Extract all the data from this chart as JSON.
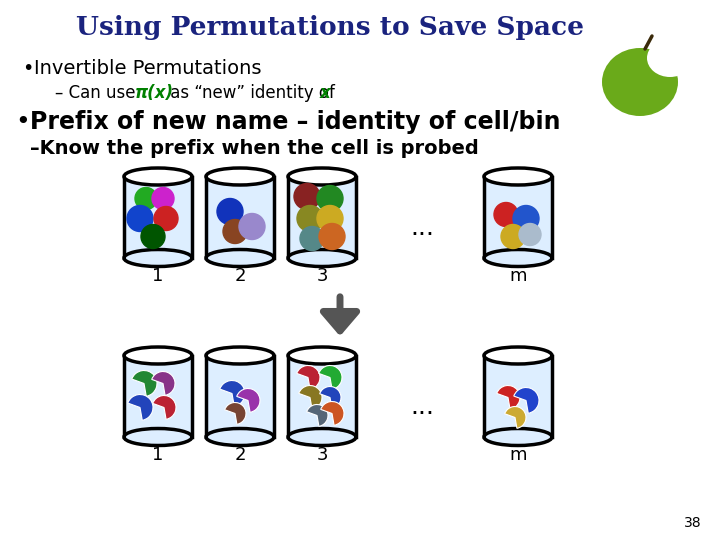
{
  "title": "Using Permutations to Save Space",
  "title_color": "#1a237e",
  "title_fontsize": 19,
  "bullet1": "Invertible Permutations",
  "sub1_prefix": "– Can use ",
  "sub1_green1": "π(x)",
  "sub1_mid": " as “new” identity of ",
  "sub1_green2": "x",
  "bullet2": "Prefix of new name – identity of cell/bin",
  "sub2": "–Know the prefix when the cell is probed",
  "bin_labels": [
    "1",
    "2",
    "3",
    "m"
  ],
  "dots_label": "...",
  "page_num": "38",
  "bg_color": "#ffffff",
  "text_color": "#000000",
  "bin_fill": "#ddeeff",
  "bin_outline": "#000000",
  "arrow_color": "#555555",
  "green_color": "#008000",
  "navy_color": "#1a237e",
  "apple_green": "#6aaa1a",
  "apple_dark": "#4a8a0a"
}
